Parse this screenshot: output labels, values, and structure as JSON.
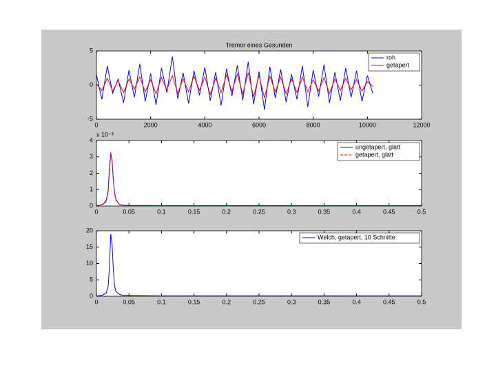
{
  "chart_data": [
    {
      "type": "line",
      "title": "Tremor eines Gesunden",
      "x": [
        0,
        200,
        400,
        600,
        800,
        1000,
        1200,
        1400,
        1600,
        1800,
        2000,
        2200,
        2400,
        2600,
        2800,
        3000,
        3200,
        3400,
        3600,
        3800,
        4000,
        4200,
        4400,
        4600,
        4800,
        5000,
        5200,
        5400,
        5600,
        5800,
        6000,
        6200,
        6400,
        6600,
        6800,
        7000,
        7200,
        7400,
        7600,
        7800,
        8000,
        8200,
        8400,
        8600,
        8800,
        9000,
        9200,
        9400,
        9600,
        9800,
        10000,
        10200
      ],
      "series": [
        {
          "name": "roh",
          "color": "#0000ff",
          "values": [
            1.5,
            -2.1,
            2.8,
            -1.2,
            0.9,
            -2.6,
            2.2,
            -1.8,
            3.1,
            -2.4,
            1.7,
            -2.9,
            2.5,
            -1.1,
            4.2,
            -2.0,
            1.8,
            -2.7,
            2.1,
            -1.5,
            2.6,
            -2.3,
            1.9,
            -3.0,
            2.4,
            -1.6,
            2.9,
            -2.2,
            3.4,
            -2.8,
            2.0,
            -3.6,
            2.7,
            -1.9,
            2.3,
            -2.5,
            1.6,
            -2.1,
            2.8,
            -3.2,
            2.2,
            -1.7,
            3.0,
            -2.6,
            1.9,
            -2.3,
            2.5,
            -1.8,
            2.1,
            -2.4,
            1.4,
            -1.2
          ]
        },
        {
          "name": "getapert",
          "color": "#ff0000",
          "values": [
            0.2,
            -0.8,
            1.0,
            -0.9,
            0.7,
            -1.1,
            0.9,
            -0.6,
            1.2,
            -1.0,
            0.8,
            -1.3,
            1.1,
            -0.7,
            1.4,
            -1.2,
            0.9,
            -1.0,
            1.3,
            -0.8,
            1.2,
            -1.4,
            1.0,
            -1.1,
            1.5,
            -0.9,
            1.6,
            -1.3,
            1.8,
            -1.7,
            1.4,
            -1.9,
            1.3,
            -1.0,
            1.2,
            -1.3,
            0.9,
            -1.1,
            1.2,
            -1.0,
            0.8,
            -0.9,
            1.1,
            -1.2,
            0.9,
            -0.8,
            1.0,
            -0.7,
            0.8,
            -0.9,
            0.5,
            -0.2
          ]
        }
      ],
      "xlim": [
        0,
        12000
      ],
      "xticks": [
        0,
        2000,
        4000,
        6000,
        8000,
        10000,
        12000
      ],
      "ylim": [
        -5,
        5
      ],
      "yticks": [
        -5,
        0,
        5
      ],
      "legend": "northeast"
    },
    {
      "type": "line",
      "y_exponent": "x 10⁻³",
      "x": [
        0,
        0.005,
        0.01,
        0.015,
        0.018,
        0.02,
        0.022,
        0.024,
        0.026,
        0.028,
        0.03,
        0.035,
        0.04,
        0.05,
        0.1,
        0.15,
        0.2,
        0.25,
        0.3,
        0.35,
        0.4,
        0.45,
        0.5
      ],
      "series": [
        {
          "name": "ungetapert, glatt",
          "color": "#0000ff",
          "dashed": false,
          "values": [
            0,
            0.05,
            0.1,
            0.3,
            0.9,
            2.2,
            3.2,
            2.8,
            1.6,
            0.8,
            0.4,
            0.1,
            0.05,
            0.03,
            0.02,
            0.02,
            0.02,
            0.02,
            0.02,
            0.02,
            0.02,
            0.02,
            0.02
          ]
        },
        {
          "name": "getapert, glatt",
          "color": "#ff0000",
          "dashed": true,
          "values": [
            0,
            0.04,
            0.12,
            0.35,
            1.0,
            2.4,
            3.3,
            2.7,
            1.5,
            0.7,
            0.35,
            0.1,
            0.04,
            0.03,
            0.02,
            0.02,
            0.02,
            0.02,
            0.02,
            0.02,
            0.02,
            0.02,
            0.02
          ]
        }
      ],
      "xlim": [
        0,
        0.5
      ],
      "xticks": [
        0,
        0.05,
        0.1,
        0.15,
        0.2,
        0.25,
        0.3,
        0.35,
        0.4,
        0.45,
        0.5
      ],
      "ylim": [
        0,
        4
      ],
      "yticks": [
        0,
        1,
        2,
        3,
        4
      ],
      "legend": "northeast"
    },
    {
      "type": "line",
      "x": [
        0,
        0.005,
        0.01,
        0.015,
        0.018,
        0.02,
        0.022,
        0.024,
        0.026,
        0.028,
        0.03,
        0.035,
        0.04,
        0.05,
        0.1,
        0.15,
        0.2,
        0.25,
        0.3,
        0.35,
        0.4,
        0.45,
        0.5
      ],
      "series": [
        {
          "name": "Welch, getapert, 10 Schnitte",
          "color": "#0000ff",
          "dashed": false,
          "values": [
            0,
            0.2,
            0.4,
            1,
            3,
            9,
            19,
            16,
            8,
            3,
            1.5,
            0.6,
            0.3,
            0.2,
            0.1,
            0.1,
            0.1,
            0.1,
            0.1,
            0.1,
            0.1,
            0.1,
            0.1
          ]
        }
      ],
      "xlim": [
        0,
        0.5
      ],
      "xticks": [
        0,
        0.05,
        0.1,
        0.15,
        0.2,
        0.25,
        0.3,
        0.35,
        0.4,
        0.45,
        0.5
      ],
      "ylim": [
        0,
        20
      ],
      "yticks": [
        0,
        5,
        10,
        15,
        20
      ],
      "legend": "northeast"
    }
  ]
}
